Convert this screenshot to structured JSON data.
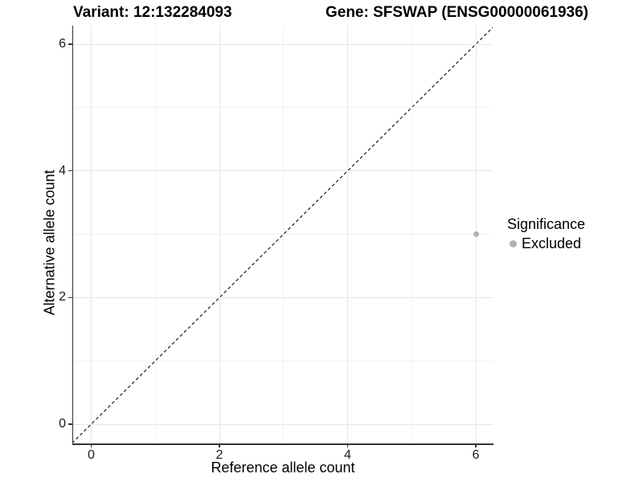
{
  "chart_data": {
    "type": "scatter",
    "title_left": "Variant: 12:132284093",
    "title_right": "Gene: SFSWAP (ENSG00000061936)",
    "xlabel": "Reference allele count",
    "ylabel": "Alternative allele count",
    "xlim": [
      -0.3,
      6.3
    ],
    "ylim": [
      -0.3,
      6.3
    ],
    "x_ticks": [
      0,
      2,
      4,
      6
    ],
    "y_ticks": [
      0,
      2,
      4,
      6
    ],
    "x_minor_ticks": [
      1,
      3,
      5
    ],
    "y_minor_ticks": [
      1,
      3,
      5
    ],
    "grid": "major+minor",
    "identity_line": {
      "style": "dashed",
      "x1": -0.3,
      "y1": -0.3,
      "x2": 6.3,
      "y2": 6.3,
      "color": "#1a1a1a"
    },
    "series": [
      {
        "name": "Excluded",
        "color": "#b0b0b0",
        "points": [
          {
            "x": 6,
            "y": 3
          }
        ]
      }
    ],
    "legend": {
      "title": "Significance",
      "position": "right",
      "entries": [
        {
          "label": "Excluded",
          "color": "#b0b0b0"
        }
      ]
    }
  },
  "colors": {
    "background": "#ffffff",
    "axis_line": "#333333",
    "grid_major": "#e6e6e6",
    "grid_minor": "#f2f2f2",
    "text": "#000000",
    "point_gray": "#b0b0b0"
  }
}
